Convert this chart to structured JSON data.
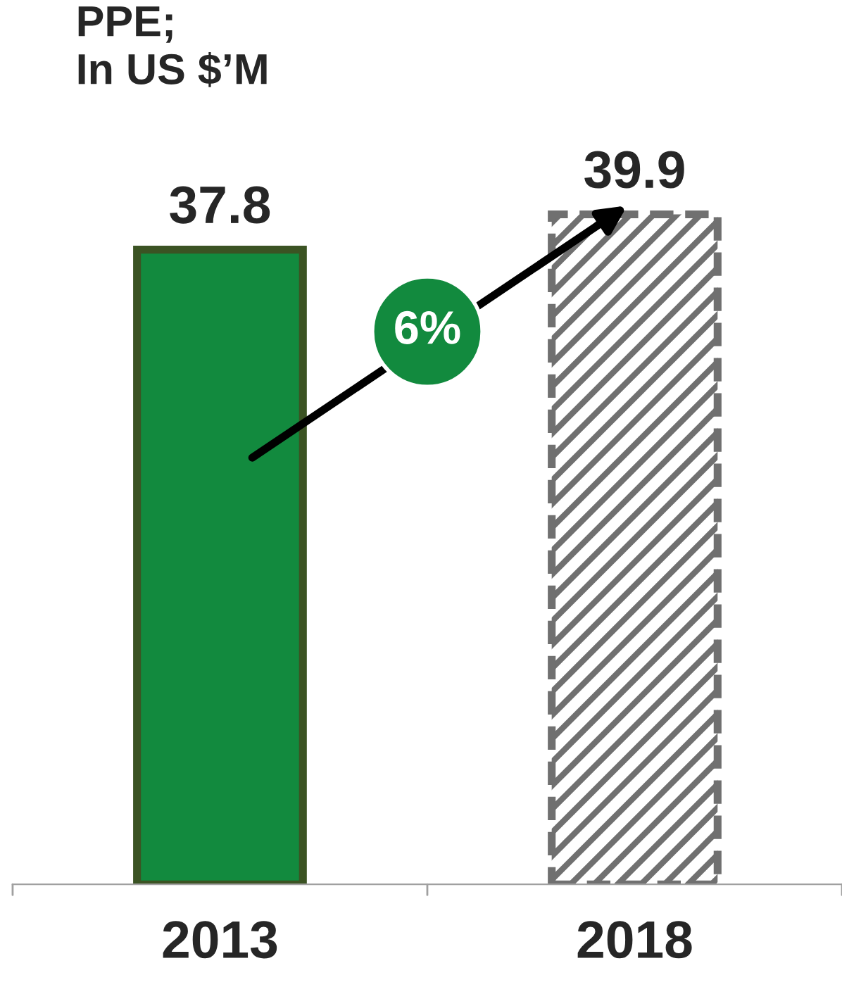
{
  "chart_data": {
    "type": "bar",
    "title": "PPE;\nIn US $’M",
    "categories": [
      "2013",
      "2018"
    ],
    "values": [
      37.8,
      39.9
    ],
    "colors": [
      "#128a3e",
      "#707070"
    ],
    "data_labels": true,
    "annotations": [
      "6%"
    ],
    "legend": false,
    "grid": false
  }
}
